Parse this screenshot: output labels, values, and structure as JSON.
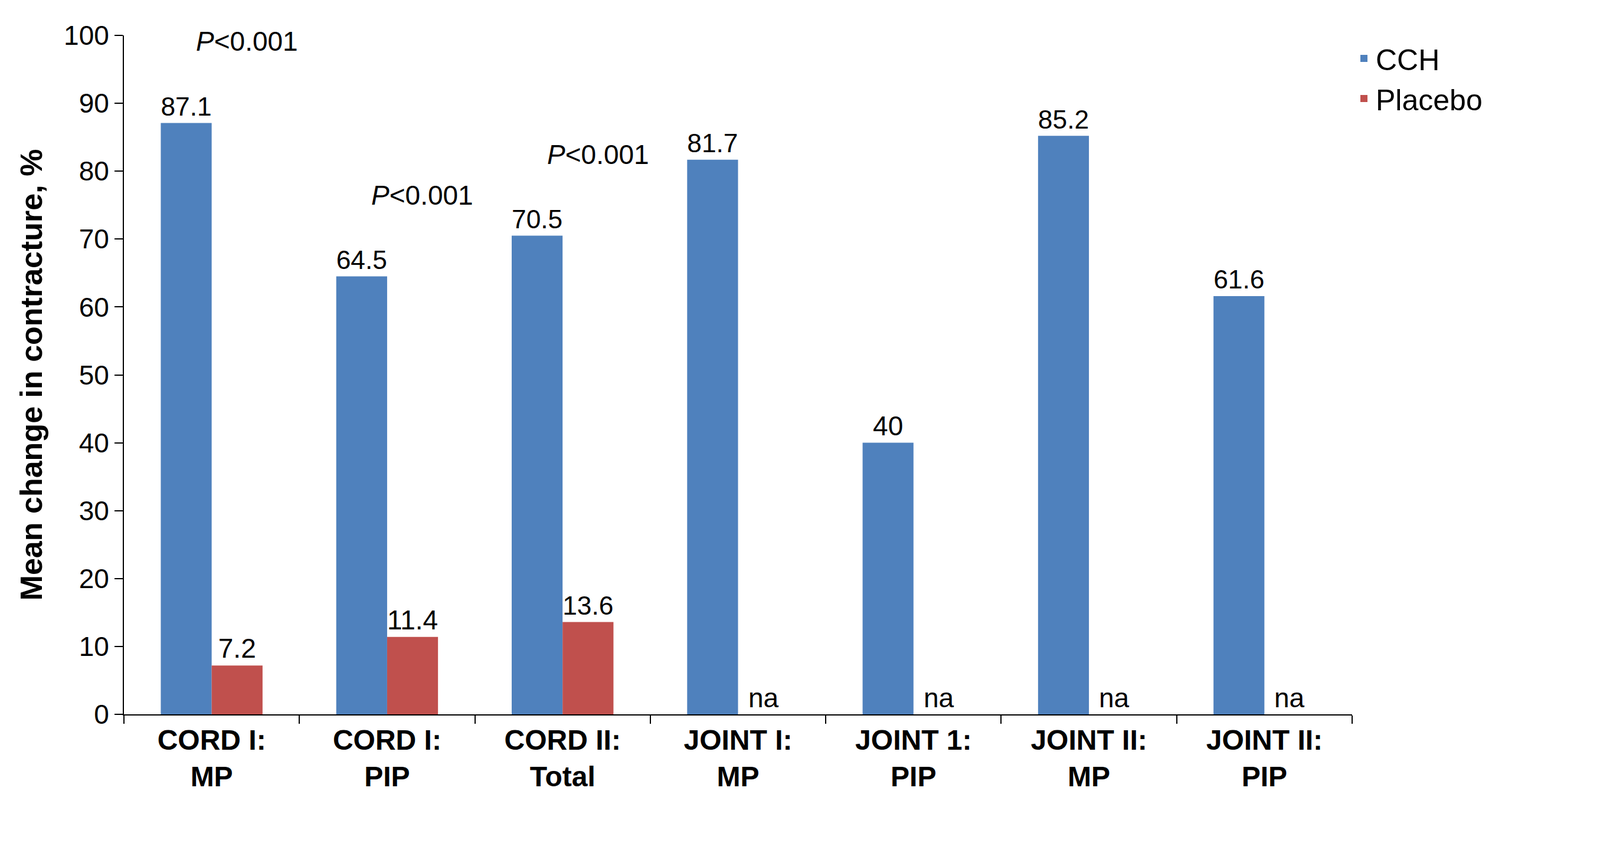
{
  "chart_data": {
    "type": "bar",
    "y_label": "Mean change in contracture, %",
    "categories": [
      "CORD I: MP",
      "CORD I: PIP",
      "CORD II: Total",
      "JOINT I: MP",
      "JOINT 1: PIP",
      "JOINT II: MP",
      "JOINT II: PIP"
    ],
    "series": [
      {
        "name": "CCH",
        "color": "#4F81BD",
        "values": [
          87.1,
          64.5,
          70.5,
          81.7,
          40,
          85.2,
          61.6
        ]
      },
      {
        "name": "Placebo",
        "color": "#C0504D",
        "values": [
          7.2,
          11.4,
          13.6,
          null,
          null,
          null,
          null
        ],
        "value_labels": [
          "7.2",
          "11.4",
          "13.6",
          "na",
          "na",
          "na",
          "na"
        ]
      }
    ],
    "annotations": [
      {
        "text": "P<0.001",
        "category": "CORD I: MP"
      },
      {
        "text": "P<0.001",
        "category": "CORD I: PIP"
      },
      {
        "text": "P<0.001",
        "category": "CORD II: Total"
      }
    ],
    "ylim": [
      0,
      100
    ],
    "yticks": [
      0,
      10,
      20,
      30,
      40,
      50,
      60,
      70,
      80,
      90,
      100
    ],
    "grid": false,
    "legend": "top right",
    "data_labels": true
  }
}
